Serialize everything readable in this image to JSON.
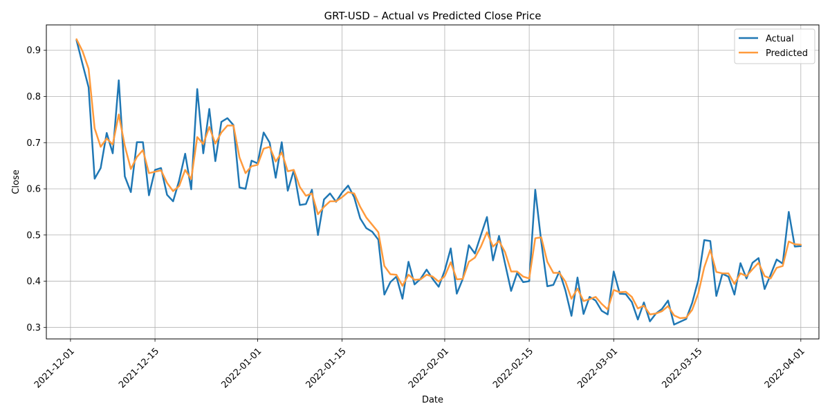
{
  "chart_data": {
    "type": "line",
    "title": "GRT-USD – Actual vs Predicted Close Price",
    "xlabel": "Date",
    "ylabel": "Close",
    "x_start": "2021-12-02",
    "x_step_days": 1,
    "xlim": [
      "2021-11-27",
      "2022-04-04"
    ],
    "ylim": [
      0.275,
      0.955
    ],
    "x_ticks": [
      "2021-12-01",
      "2021-12-15",
      "2022-01-01",
      "2022-01-15",
      "2022-02-01",
      "2022-02-15",
      "2022-03-01",
      "2022-03-15",
      "2022-04-01"
    ],
    "y_ticks": [
      "0.3",
      "0.4",
      "0.5",
      "0.6",
      "0.7",
      "0.8",
      "0.9"
    ],
    "grid": true,
    "legend_position": "top-right",
    "series": [
      {
        "name": "Actual",
        "color": "#1f77b4",
        "values": [
          0.922,
          0.87,
          0.82,
          0.622,
          0.645,
          0.721,
          0.677,
          0.835,
          0.627,
          0.593,
          0.701,
          0.701,
          0.586,
          0.641,
          0.645,
          0.587,
          0.573,
          0.618,
          0.676,
          0.599,
          0.816,
          0.677,
          0.773,
          0.66,
          0.745,
          0.753,
          0.738,
          0.603,
          0.6,
          0.661,
          0.655,
          0.722,
          0.7,
          0.624,
          0.701,
          0.596,
          0.64,
          0.565,
          0.567,
          0.598,
          0.5,
          0.577,
          0.59,
          0.572,
          0.592,
          0.607,
          0.582,
          0.536,
          0.515,
          0.507,
          0.49,
          0.371,
          0.398,
          0.41,
          0.362,
          0.442,
          0.393,
          0.405,
          0.425,
          0.405,
          0.388,
          0.423,
          0.471,
          0.373,
          0.405,
          0.478,
          0.46,
          0.5,
          0.539,
          0.445,
          0.498,
          0.438,
          0.379,
          0.418,
          0.398,
          0.4,
          0.598,
          0.485,
          0.389,
          0.392,
          0.421,
          0.38,
          0.325,
          0.408,
          0.329,
          0.366,
          0.358,
          0.336,
          0.328,
          0.421,
          0.373,
          0.372,
          0.355,
          0.317,
          0.354,
          0.313,
          0.33,
          0.34,
          0.358,
          0.306,
          0.312,
          0.318,
          0.353,
          0.402,
          0.489,
          0.487,
          0.368,
          0.416,
          0.41,
          0.371,
          0.439,
          0.406,
          0.44,
          0.45,
          0.383,
          0.414,
          0.447,
          0.438,
          0.55,
          0.475,
          0.476
        ]
      },
      {
        "name": "Predicted",
        "color": "#ff9a3c",
        "values": [
          0.924,
          0.898,
          0.86,
          0.731,
          0.691,
          0.709,
          0.696,
          0.761,
          0.693,
          0.643,
          0.669,
          0.684,
          0.634,
          0.637,
          0.64,
          0.613,
          0.595,
          0.606,
          0.641,
          0.621,
          0.712,
          0.697,
          0.734,
          0.698,
          0.722,
          0.737,
          0.737,
          0.668,
          0.634,
          0.649,
          0.652,
          0.687,
          0.691,
          0.659,
          0.679,
          0.638,
          0.641,
          0.604,
          0.585,
          0.59,
          0.545,
          0.561,
          0.573,
          0.573,
          0.582,
          0.593,
          0.59,
          0.561,
          0.538,
          0.522,
          0.506,
          0.433,
          0.415,
          0.414,
          0.39,
          0.414,
          0.403,
          0.404,
          0.414,
          0.41,
          0.399,
          0.411,
          0.441,
          0.404,
          0.405,
          0.442,
          0.451,
          0.475,
          0.506,
          0.475,
          0.487,
          0.463,
          0.421,
          0.421,
          0.41,
          0.406,
          0.493,
          0.495,
          0.442,
          0.418,
          0.418,
          0.399,
          0.362,
          0.384,
          0.357,
          0.361,
          0.366,
          0.351,
          0.339,
          0.381,
          0.376,
          0.377,
          0.366,
          0.341,
          0.347,
          0.328,
          0.33,
          0.335,
          0.346,
          0.326,
          0.32,
          0.321,
          0.338,
          0.373,
          0.43,
          0.468,
          0.42,
          0.417,
          0.417,
          0.394,
          0.417,
          0.411,
          0.426,
          0.44,
          0.411,
          0.406,
          0.429,
          0.433,
          0.486,
          0.48,
          0.479
        ]
      }
    ]
  }
}
